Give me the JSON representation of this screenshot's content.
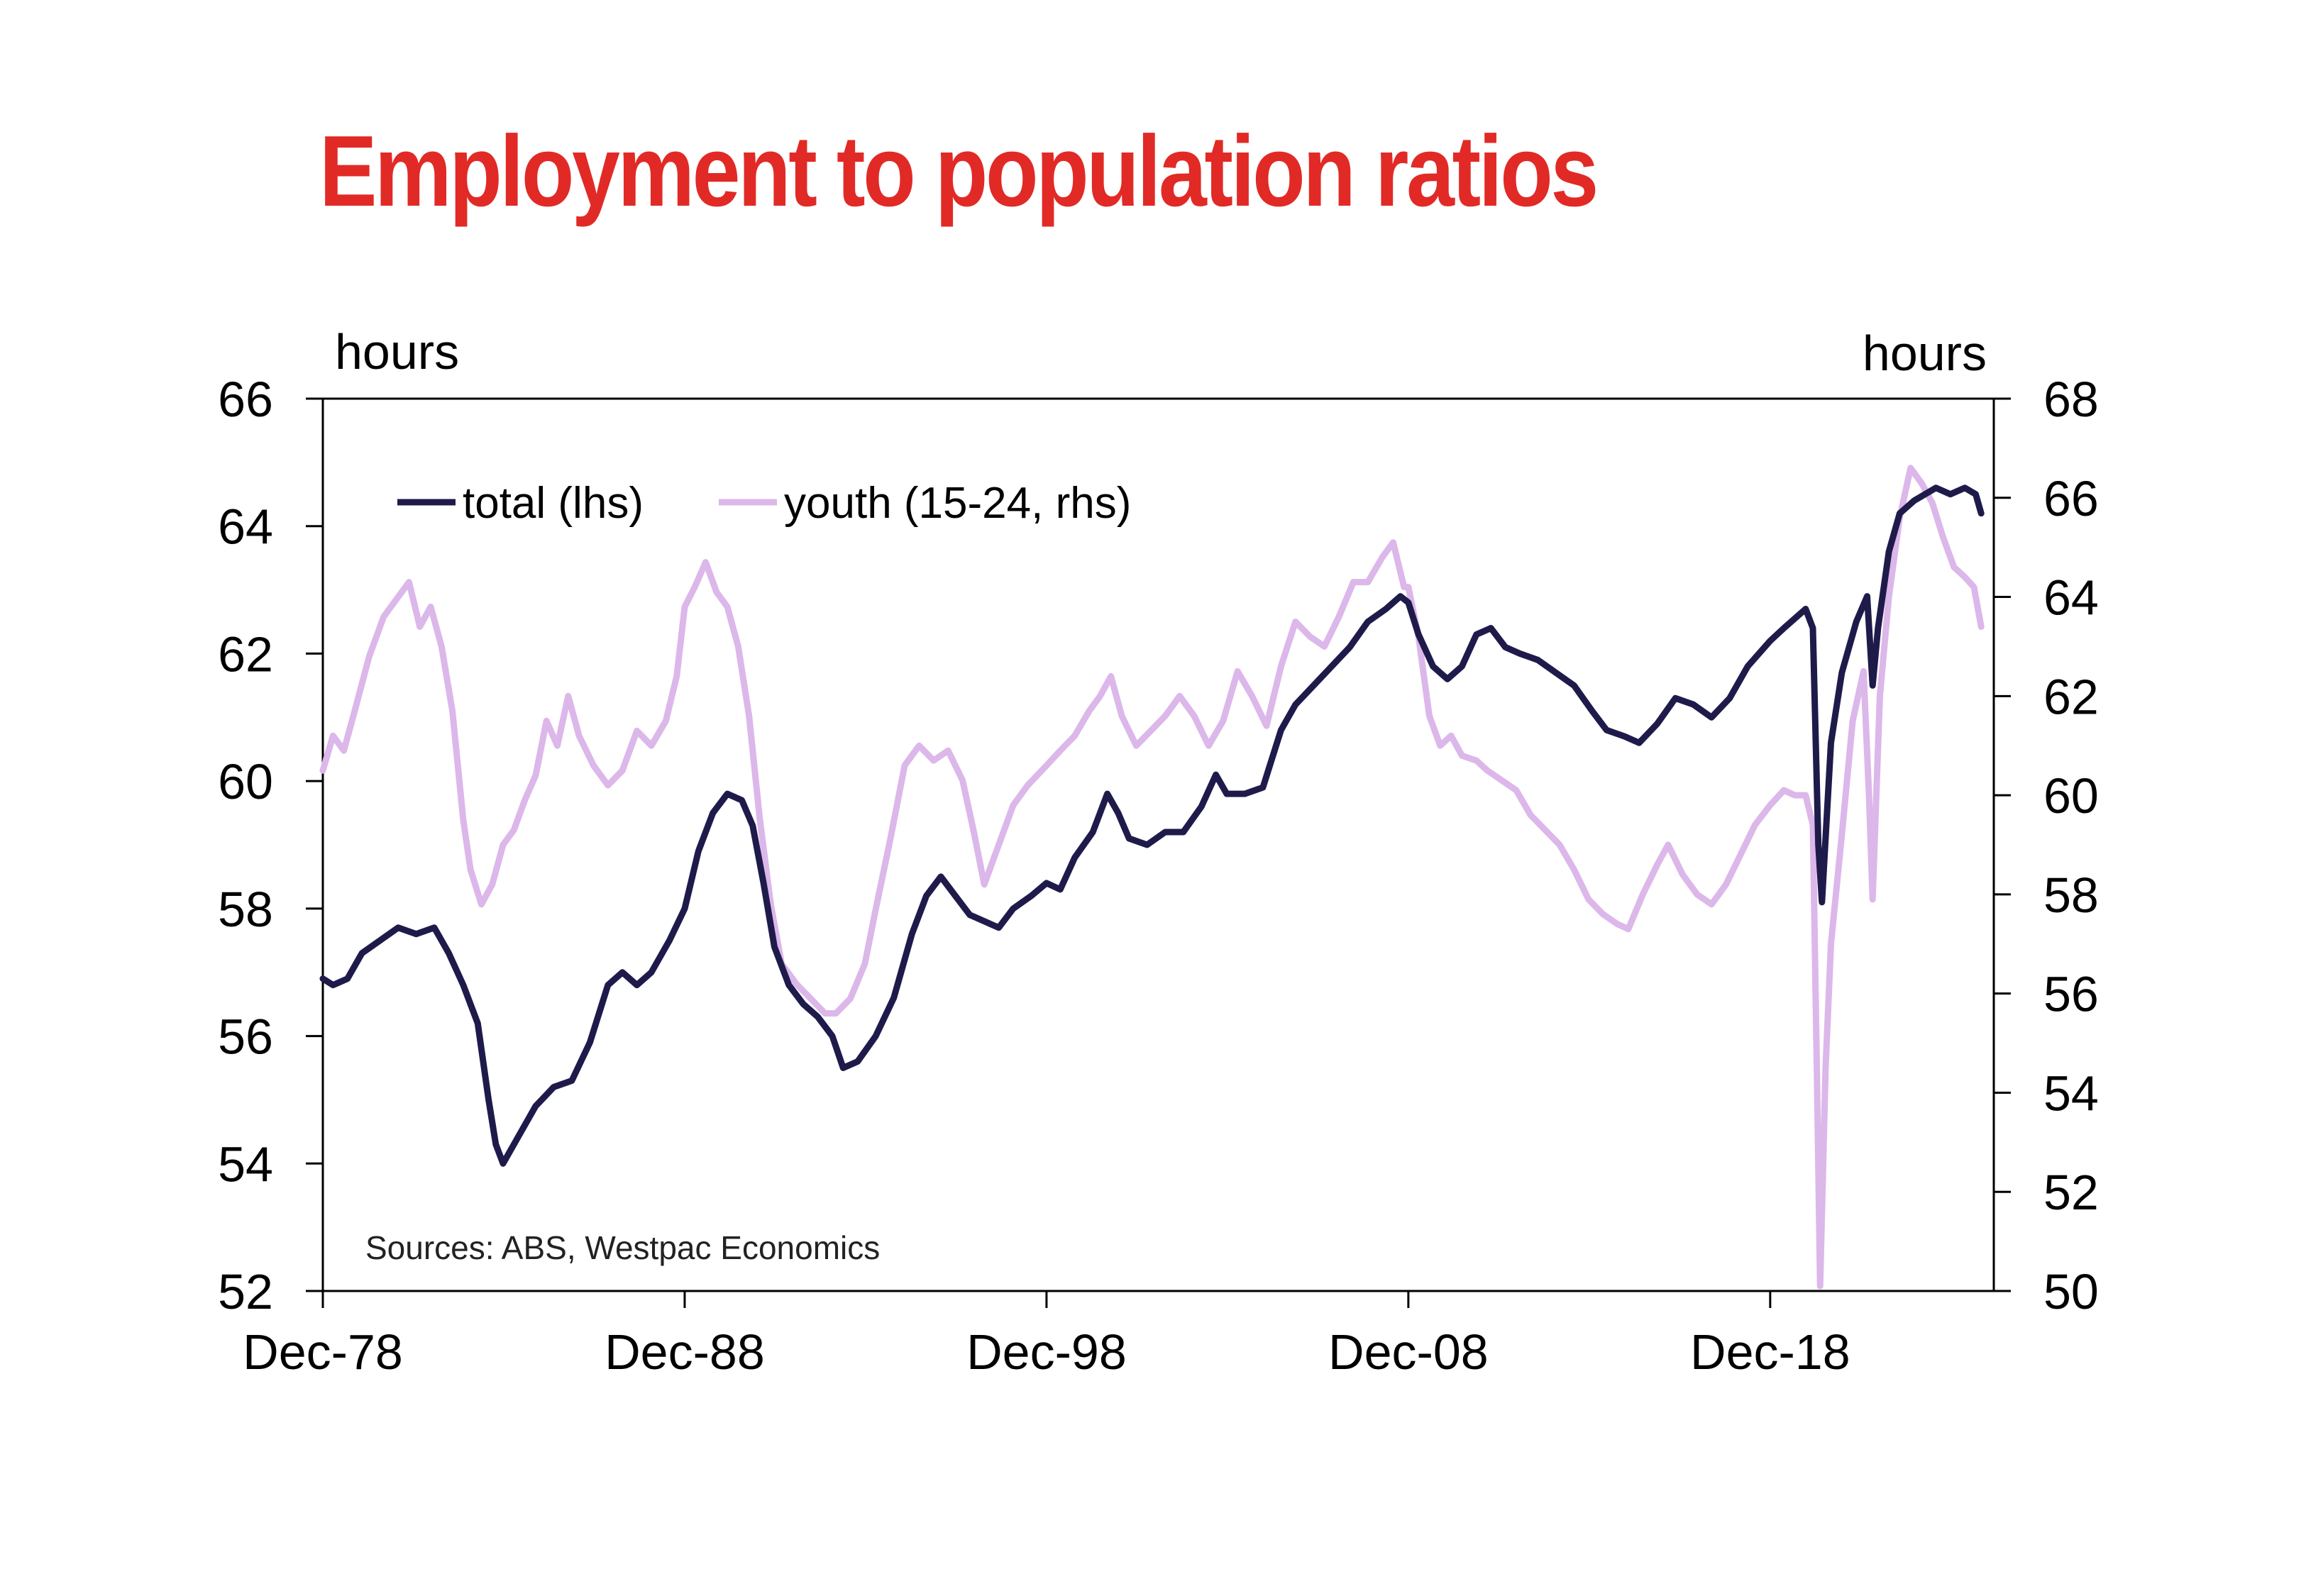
{
  "colors": {
    "title": "#e12a26",
    "total": "#1e1b4b",
    "youth": "#dcb7ea",
    "axis": "#000000"
  },
  "chart_data": {
    "type": "line",
    "title": "Employment to population ratios",
    "left_axis_unit": "hours",
    "right_axis_unit": "hours",
    "source": "Sources: ABS, Westpac Economics",
    "x_tick_labels": [
      "Dec-78",
      "Dec-88",
      "Dec-98",
      "Dec-08",
      "Dec-18"
    ],
    "x_tick_years": [
      1978.92,
      1988.92,
      1998.92,
      2008.92,
      2018.92
    ],
    "xlim": [
      1978.92,
      2025.1
    ],
    "ylim_left": [
      52,
      66
    ],
    "ylim_right": [
      50,
      68
    ],
    "y_ticks_left": [
      "52",
      "54",
      "56",
      "58",
      "60",
      "62",
      "64",
      "66"
    ],
    "y_ticks_right": [
      "50",
      "52",
      "54",
      "56",
      "58",
      "60",
      "62",
      "64",
      "66",
      "68"
    ],
    "grid": false,
    "legend_position": "top-left",
    "series": [
      {
        "name": "total (lhs)",
        "axis": "left",
        "points": [
          [
            1978.92,
            56.9
          ],
          [
            1979.2,
            56.8
          ],
          [
            1979.6,
            56.9
          ],
          [
            1980.0,
            57.3
          ],
          [
            1980.5,
            57.5
          ],
          [
            1981.0,
            57.7
          ],
          [
            1981.5,
            57.6
          ],
          [
            1982.0,
            57.7
          ],
          [
            1982.4,
            57.3
          ],
          [
            1982.8,
            56.8
          ],
          [
            1983.2,
            56.2
          ],
          [
            1983.5,
            55.0
          ],
          [
            1983.7,
            54.3
          ],
          [
            1983.9,
            54.0
          ],
          [
            1984.3,
            54.4
          ],
          [
            1984.8,
            54.9
          ],
          [
            1985.3,
            55.2
          ],
          [
            1985.8,
            55.3
          ],
          [
            1986.3,
            55.9
          ],
          [
            1986.8,
            56.8
          ],
          [
            1987.2,
            57.0
          ],
          [
            1987.6,
            56.8
          ],
          [
            1988.0,
            57.0
          ],
          [
            1988.5,
            57.5
          ],
          [
            1988.92,
            58.0
          ],
          [
            1989.3,
            58.9
          ],
          [
            1989.7,
            59.5
          ],
          [
            1990.1,
            59.8
          ],
          [
            1990.5,
            59.7
          ],
          [
            1990.8,
            59.3
          ],
          [
            1991.1,
            58.4
          ],
          [
            1991.4,
            57.4
          ],
          [
            1991.8,
            56.8
          ],
          [
            1992.2,
            56.5
          ],
          [
            1992.6,
            56.3
          ],
          [
            1993.0,
            56.0
          ],
          [
            1993.3,
            55.5
          ],
          [
            1993.7,
            55.6
          ],
          [
            1994.2,
            56.0
          ],
          [
            1994.7,
            56.6
          ],
          [
            1995.2,
            57.6
          ],
          [
            1995.6,
            58.2
          ],
          [
            1996.0,
            58.5
          ],
          [
            1996.4,
            58.2
          ],
          [
            1996.8,
            57.9
          ],
          [
            1997.2,
            57.8
          ],
          [
            1997.6,
            57.7
          ],
          [
            1998.0,
            58.0
          ],
          [
            1998.5,
            58.2
          ],
          [
            1998.92,
            58.4
          ],
          [
            1999.3,
            58.3
          ],
          [
            1999.7,
            58.8
          ],
          [
            2000.2,
            59.2
          ],
          [
            2000.6,
            59.8
          ],
          [
            2000.9,
            59.5
          ],
          [
            2001.2,
            59.1
          ],
          [
            2001.7,
            59.0
          ],
          [
            2002.2,
            59.2
          ],
          [
            2002.7,
            59.2
          ],
          [
            2003.2,
            59.6
          ],
          [
            2003.6,
            60.1
          ],
          [
            2003.9,
            59.8
          ],
          [
            2004.4,
            59.8
          ],
          [
            2004.9,
            59.9
          ],
          [
            2005.4,
            60.8
          ],
          [
            2005.8,
            61.2
          ],
          [
            2006.3,
            61.5
          ],
          [
            2006.8,
            61.8
          ],
          [
            2007.3,
            62.1
          ],
          [
            2007.8,
            62.5
          ],
          [
            2008.3,
            62.7
          ],
          [
            2008.7,
            62.9
          ],
          [
            2008.92,
            62.8
          ],
          [
            2009.2,
            62.3
          ],
          [
            2009.6,
            61.8
          ],
          [
            2010.0,
            61.6
          ],
          [
            2010.4,
            61.8
          ],
          [
            2010.8,
            62.3
          ],
          [
            2011.2,
            62.4
          ],
          [
            2011.6,
            62.1
          ],
          [
            2012.0,
            62.0
          ],
          [
            2012.5,
            61.9
          ],
          [
            2013.0,
            61.7
          ],
          [
            2013.5,
            61.5
          ],
          [
            2014.0,
            61.1
          ],
          [
            2014.4,
            60.8
          ],
          [
            2014.9,
            60.7
          ],
          [
            2015.3,
            60.6
          ],
          [
            2015.8,
            60.9
          ],
          [
            2016.3,
            61.3
          ],
          [
            2016.8,
            61.2
          ],
          [
            2017.3,
            61.0
          ],
          [
            2017.8,
            61.3
          ],
          [
            2018.3,
            61.8
          ],
          [
            2018.92,
            62.2
          ],
          [
            2019.3,
            62.4
          ],
          [
            2019.7,
            62.6
          ],
          [
            2019.9,
            62.7
          ],
          [
            2020.1,
            62.4
          ],
          [
            2020.25,
            59.0
          ],
          [
            2020.35,
            58.1
          ],
          [
            2020.6,
            60.6
          ],
          [
            2020.9,
            61.7
          ],
          [
            2021.3,
            62.5
          ],
          [
            2021.6,
            62.9
          ],
          [
            2021.75,
            61.5
          ],
          [
            2021.9,
            62.4
          ],
          [
            2022.2,
            63.6
          ],
          [
            2022.5,
            64.2
          ],
          [
            2022.9,
            64.4
          ],
          [
            2023.2,
            64.5
          ],
          [
            2023.5,
            64.6
          ],
          [
            2023.9,
            64.5
          ],
          [
            2024.3,
            64.6
          ],
          [
            2024.6,
            64.5
          ],
          [
            2024.75,
            64.2
          ]
        ]
      },
      {
        "name": "youth (15-24, rhs)",
        "axis": "right",
        "points": [
          [
            1978.92,
            60.5
          ],
          [
            1979.2,
            61.2
          ],
          [
            1979.5,
            60.9
          ],
          [
            1979.8,
            61.7
          ],
          [
            1980.2,
            62.8
          ],
          [
            1980.6,
            63.6
          ],
          [
            1981.0,
            64.0
          ],
          [
            1981.3,
            64.3
          ],
          [
            1981.6,
            63.4
          ],
          [
            1981.9,
            63.8
          ],
          [
            1982.2,
            63.0
          ],
          [
            1982.5,
            61.7
          ],
          [
            1982.8,
            59.5
          ],
          [
            1983.0,
            58.5
          ],
          [
            1983.3,
            57.8
          ],
          [
            1983.6,
            58.2
          ],
          [
            1983.9,
            59.0
          ],
          [
            1984.2,
            59.3
          ],
          [
            1984.5,
            59.9
          ],
          [
            1984.8,
            60.4
          ],
          [
            1985.1,
            61.5
          ],
          [
            1985.4,
            61.0
          ],
          [
            1985.7,
            62.0
          ],
          [
            1986.0,
            61.2
          ],
          [
            1986.4,
            60.6
          ],
          [
            1986.8,
            60.2
          ],
          [
            1987.2,
            60.5
          ],
          [
            1987.6,
            61.3
          ],
          [
            1988.0,
            61.0
          ],
          [
            1988.4,
            61.5
          ],
          [
            1988.7,
            62.4
          ],
          [
            1988.92,
            63.8
          ],
          [
            1989.2,
            64.2
          ],
          [
            1989.5,
            64.7
          ],
          [
            1989.8,
            64.1
          ],
          [
            1990.1,
            63.8
          ],
          [
            1990.4,
            63.0
          ],
          [
            1990.7,
            61.6
          ],
          [
            1991.0,
            59.5
          ],
          [
            1991.3,
            57.8
          ],
          [
            1991.6,
            56.6
          ],
          [
            1992.0,
            56.2
          ],
          [
            1992.4,
            55.9
          ],
          [
            1992.8,
            55.6
          ],
          [
            1993.1,
            55.6
          ],
          [
            1993.5,
            55.9
          ],
          [
            1993.9,
            56.6
          ],
          [
            1994.2,
            57.7
          ],
          [
            1994.6,
            59.1
          ],
          [
            1995.0,
            60.6
          ],
          [
            1995.4,
            61.0
          ],
          [
            1995.8,
            60.7
          ],
          [
            1996.2,
            60.9
          ],
          [
            1996.6,
            60.3
          ],
          [
            1996.9,
            59.3
          ],
          [
            1997.2,
            58.2
          ],
          [
            1997.6,
            59.0
          ],
          [
            1998.0,
            59.8
          ],
          [
            1998.4,
            60.2
          ],
          [
            1998.92,
            60.6
          ],
          [
            1999.3,
            60.9
          ],
          [
            1999.7,
            61.2
          ],
          [
            2000.1,
            61.7
          ],
          [
            2000.4,
            62.0
          ],
          [
            2000.7,
            62.4
          ],
          [
            2001.0,
            61.6
          ],
          [
            2001.4,
            61.0
          ],
          [
            2001.8,
            61.3
          ],
          [
            2002.2,
            61.6
          ],
          [
            2002.6,
            62.0
          ],
          [
            2003.0,
            61.6
          ],
          [
            2003.4,
            61.0
          ],
          [
            2003.8,
            61.5
          ],
          [
            2004.2,
            62.5
          ],
          [
            2004.6,
            62.0
          ],
          [
            2005.0,
            61.4
          ],
          [
            2005.4,
            62.6
          ],
          [
            2005.8,
            63.5
          ],
          [
            2006.2,
            63.2
          ],
          [
            2006.6,
            63.0
          ],
          [
            2007.0,
            63.6
          ],
          [
            2007.4,
            64.3
          ],
          [
            2007.8,
            64.3
          ],
          [
            2008.2,
            64.8
          ],
          [
            2008.5,
            65.1
          ],
          [
            2008.8,
            64.2
          ],
          [
            2008.92,
            64.2
          ],
          [
            2009.2,
            63.2
          ],
          [
            2009.5,
            61.6
          ],
          [
            2009.8,
            61.0
          ],
          [
            2010.1,
            61.2
          ],
          [
            2010.4,
            60.8
          ],
          [
            2010.8,
            60.7
          ],
          [
            2011.1,
            60.5
          ],
          [
            2011.5,
            60.3
          ],
          [
            2011.9,
            60.1
          ],
          [
            2012.3,
            59.6
          ],
          [
            2012.7,
            59.3
          ],
          [
            2013.1,
            59.0
          ],
          [
            2013.5,
            58.5
          ],
          [
            2013.9,
            57.9
          ],
          [
            2014.3,
            57.6
          ],
          [
            2014.7,
            57.4
          ],
          [
            2015.0,
            57.3
          ],
          [
            2015.4,
            58.0
          ],
          [
            2015.8,
            58.6
          ],
          [
            2016.1,
            59.0
          ],
          [
            2016.5,
            58.4
          ],
          [
            2016.9,
            58.0
          ],
          [
            2017.3,
            57.8
          ],
          [
            2017.7,
            58.2
          ],
          [
            2018.1,
            58.8
          ],
          [
            2018.5,
            59.4
          ],
          [
            2018.92,
            59.8
          ],
          [
            2019.3,
            60.1
          ],
          [
            2019.6,
            60.0
          ],
          [
            2019.9,
            60.0
          ],
          [
            2020.1,
            59.4
          ],
          [
            2020.22,
            54.0
          ],
          [
            2020.3,
            50.1
          ],
          [
            2020.45,
            54.5
          ],
          [
            2020.6,
            57.0
          ],
          [
            2020.9,
            59.2
          ],
          [
            2021.2,
            61.5
          ],
          [
            2021.5,
            62.5
          ],
          [
            2021.65,
            60.0
          ],
          [
            2021.75,
            57.9
          ],
          [
            2021.95,
            62.0
          ],
          [
            2022.2,
            64.0
          ],
          [
            2022.5,
            65.6
          ],
          [
            2022.8,
            66.6
          ],
          [
            2023.1,
            66.3
          ],
          [
            2023.4,
            65.9
          ],
          [
            2023.7,
            65.2
          ],
          [
            2024.0,
            64.6
          ],
          [
            2024.3,
            64.4
          ],
          [
            2024.55,
            64.2
          ],
          [
            2024.75,
            63.4
          ]
        ]
      }
    ]
  }
}
